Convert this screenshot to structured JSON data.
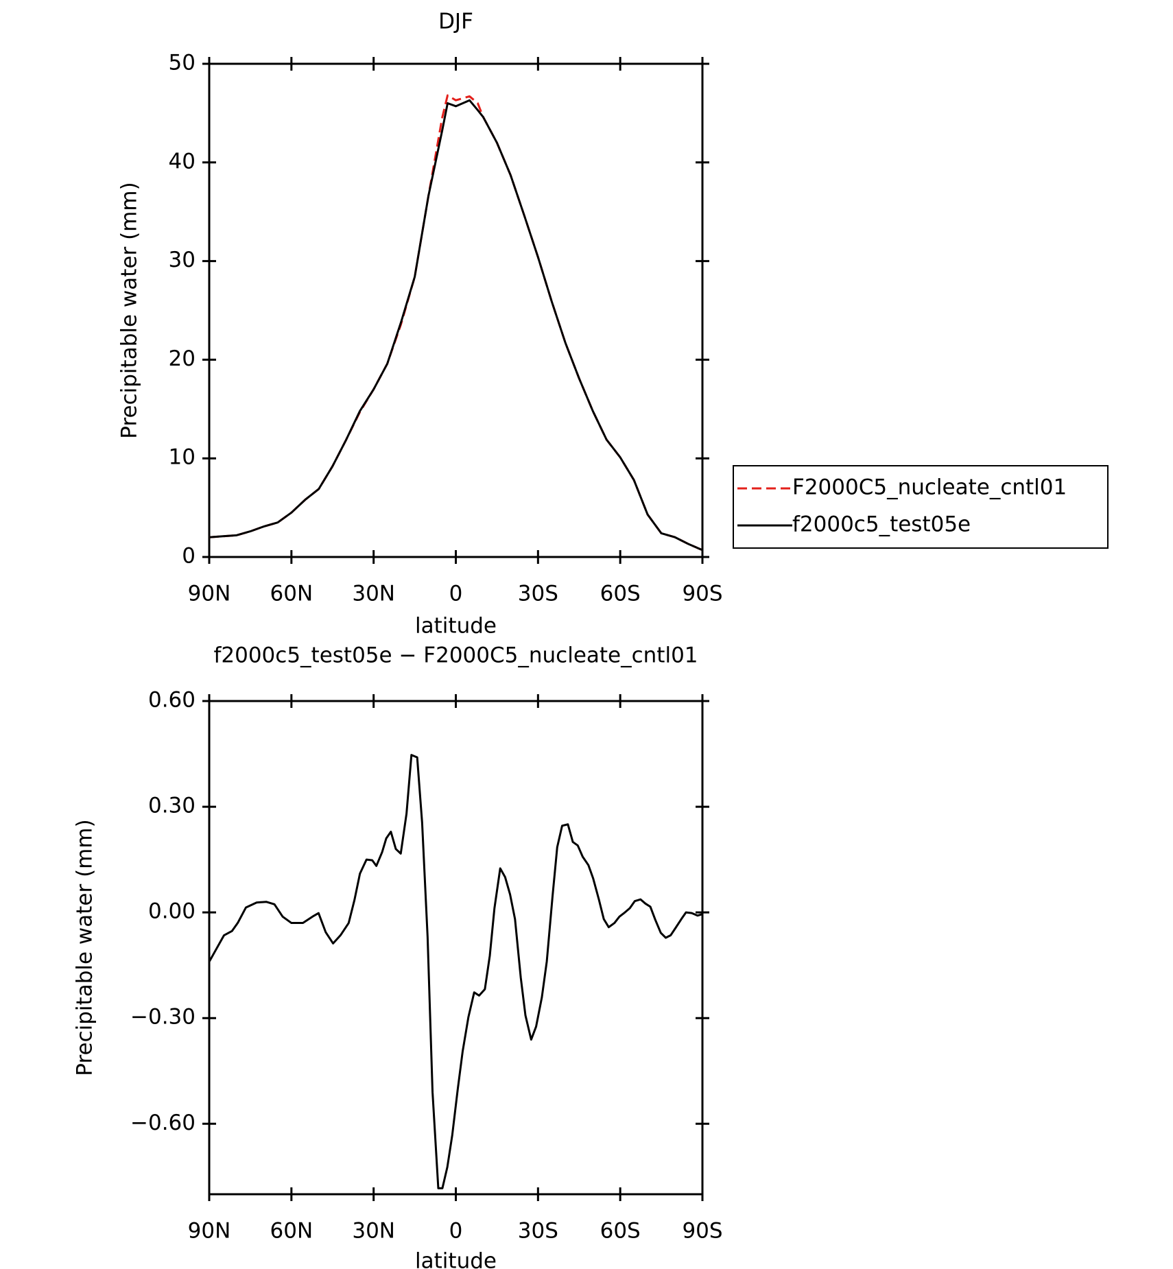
{
  "chart_data": [
    {
      "type": "line",
      "title": "DJF",
      "xlabel": "latitude",
      "ylabel": "Precipitable water (mm)",
      "x": [
        90,
        85,
        80,
        75,
        70,
        65,
        60,
        55,
        50,
        45,
        40,
        35,
        30,
        25,
        20,
        15,
        10,
        5,
        3,
        0,
        -5,
        -8,
        -10,
        -15,
        -20,
        -25,
        -30,
        -35,
        -40,
        -45,
        -50,
        -55,
        -60,
        -65,
        -70,
        -75,
        -80,
        -85,
        -90
      ],
      "series": [
        {
          "name": "F2000C5_nucleate_cntl01",
          "color": "#e3201b",
          "dash": true,
          "values": [
            2.0,
            2.1,
            2.2,
            2.6,
            3.1,
            3.5,
            4.5,
            5.8,
            6.9,
            9.2,
            11.9,
            14.7,
            17.0,
            19.6,
            23.6,
            28.4,
            36.6,
            44.5,
            46.8,
            46.3,
            46.7,
            46.0,
            44.6,
            42.0,
            38.7,
            34.6,
            30.4,
            25.9,
            21.7,
            18.1,
            14.8,
            11.9,
            10.1,
            7.8,
            4.3,
            2.4,
            2.0,
            1.3,
            0.7
          ]
        },
        {
          "name": "f2000c5_test05e",
          "color": "#000000",
          "dash": false,
          "values": [
            2.0,
            2.1,
            2.2,
            2.6,
            3.1,
            3.5,
            4.5,
            5.8,
            6.9,
            9.2,
            11.9,
            14.8,
            17.0,
            19.6,
            23.8,
            28.4,
            36.6,
            43.2,
            46.0,
            45.7,
            46.3,
            45.3,
            44.6,
            42.0,
            38.7,
            34.6,
            30.4,
            25.9,
            21.7,
            18.1,
            14.8,
            11.9,
            10.1,
            7.8,
            4.3,
            2.4,
            2.0,
            1.3,
            0.7
          ]
        }
      ],
      "xlim": [
        90,
        -90
      ],
      "xticks": [
        {
          "value": 90,
          "label": "90N"
        },
        {
          "value": 60,
          "label": "60N"
        },
        {
          "value": 30,
          "label": "30N"
        },
        0,
        {
          "value": -30,
          "label": "30S"
        },
        {
          "value": -60,
          "label": "60S"
        },
        {
          "value": -90,
          "label": "90S"
        }
      ],
      "ylim": [
        0,
        50
      ],
      "yticks": [
        0,
        10,
        20,
        30,
        40,
        50
      ],
      "legend": "right"
    },
    {
      "type": "line",
      "title": "f2000c5_test05e − F2000C5_nucleate_cntl01",
      "xlabel": "latitude",
      "ylabel": "Precipitable water (mm)",
      "x": [
        90,
        88.2,
        84.6,
        81.7,
        79.6,
        76.6,
        72.7,
        69.2,
        66.2,
        63.2,
        60,
        55.8,
        51.9,
        50.1,
        47.5,
        44.8,
        42.1,
        39.1,
        37,
        35,
        32.6,
        30.5,
        29,
        26.9,
        25.4,
        23.7,
        21.9,
        20.1,
        18,
        16.2,
        14.1,
        12.3,
        10.3,
        8.5,
        6.4,
        4.9,
        3.1,
        1.3,
        -0.7,
        -2.5,
        -4.6,
        -6.7,
        -8.5,
        -10.6,
        -12.4,
        -14.1,
        -16.2,
        -18,
        -19.8,
        -21.6,
        -23.7,
        -25.4,
        -27.5,
        -29.3,
        -31.4,
        -33.2,
        -35.3,
        -37,
        -38.8,
        -40.9,
        -42.7,
        -44.5,
        -46.3,
        -48.4,
        -50.1,
        -52.2,
        -54,
        -55.8,
        -57.9,
        -59.7,
        -61.7,
        -63.5,
        -65.3,
        -67.4,
        -69.2,
        -71,
        -72.8,
        -74.8,
        -76.6,
        -78.4,
        -80.2,
        -82.3,
        -84,
        -86.1,
        -88.2,
        -90
      ],
      "series": [
        {
          "name": "f2000c5_test05e − F2000C5_nucleate_cntl01",
          "color": "#000000",
          "dash": false,
          "values": [
            -0.14,
            -0.115,
            -0.065,
            -0.053,
            -0.03,
            0.014,
            0.028,
            0.03,
            0.023,
            -0.012,
            -0.03,
            -0.03,
            -0.01,
            -0.002,
            -0.056,
            -0.088,
            -0.065,
            -0.03,
            0.035,
            0.11,
            0.15,
            0.148,
            0.132,
            0.171,
            0.21,
            0.229,
            0.18,
            0.167,
            0.28,
            0.447,
            0.44,
            0.255,
            -0.07,
            -0.51,
            -0.783,
            -0.783,
            -0.723,
            -0.632,
            -0.502,
            -0.394,
            -0.297,
            -0.227,
            -0.236,
            -0.218,
            -0.123,
            0.012,
            0.125,
            0.1,
            0.051,
            -0.019,
            -0.185,
            -0.292,
            -0.361,
            -0.324,
            -0.241,
            -0.139,
            0.046,
            0.185,
            0.246,
            0.25,
            0.2,
            0.19,
            0.158,
            0.134,
            0.097,
            0.037,
            -0.019,
            -0.042,
            -0.03,
            -0.012,
            0,
            0.012,
            0.032,
            0.037,
            0.025,
            0.016,
            -0.021,
            -0.058,
            -0.072,
            -0.065,
            -0.044,
            -0.019,
            0,
            -0.002,
            -0.009,
            -0.005
          ]
        }
      ],
      "xlim": [
        90,
        -90
      ],
      "xticks": [
        {
          "value": 90,
          "label": "90N"
        },
        {
          "value": 60,
          "label": "60N"
        },
        {
          "value": 30,
          "label": "30N"
        },
        0,
        {
          "value": -30,
          "label": "30S"
        },
        {
          "value": -60,
          "label": "60S"
        },
        {
          "value": -90,
          "label": "90S"
        }
      ],
      "ylim": [
        -0.8,
        0.6
      ],
      "yticks": [
        {
          "value": 0.6,
          "label": "0.60"
        },
        {
          "value": 0.3,
          "label": "0.30"
        },
        {
          "value": 0,
          "label": "0.00"
        },
        {
          "value": -0.3,
          "label": "−0.30"
        },
        {
          "value": -0.6,
          "label": "−0.60"
        }
      ]
    }
  ]
}
